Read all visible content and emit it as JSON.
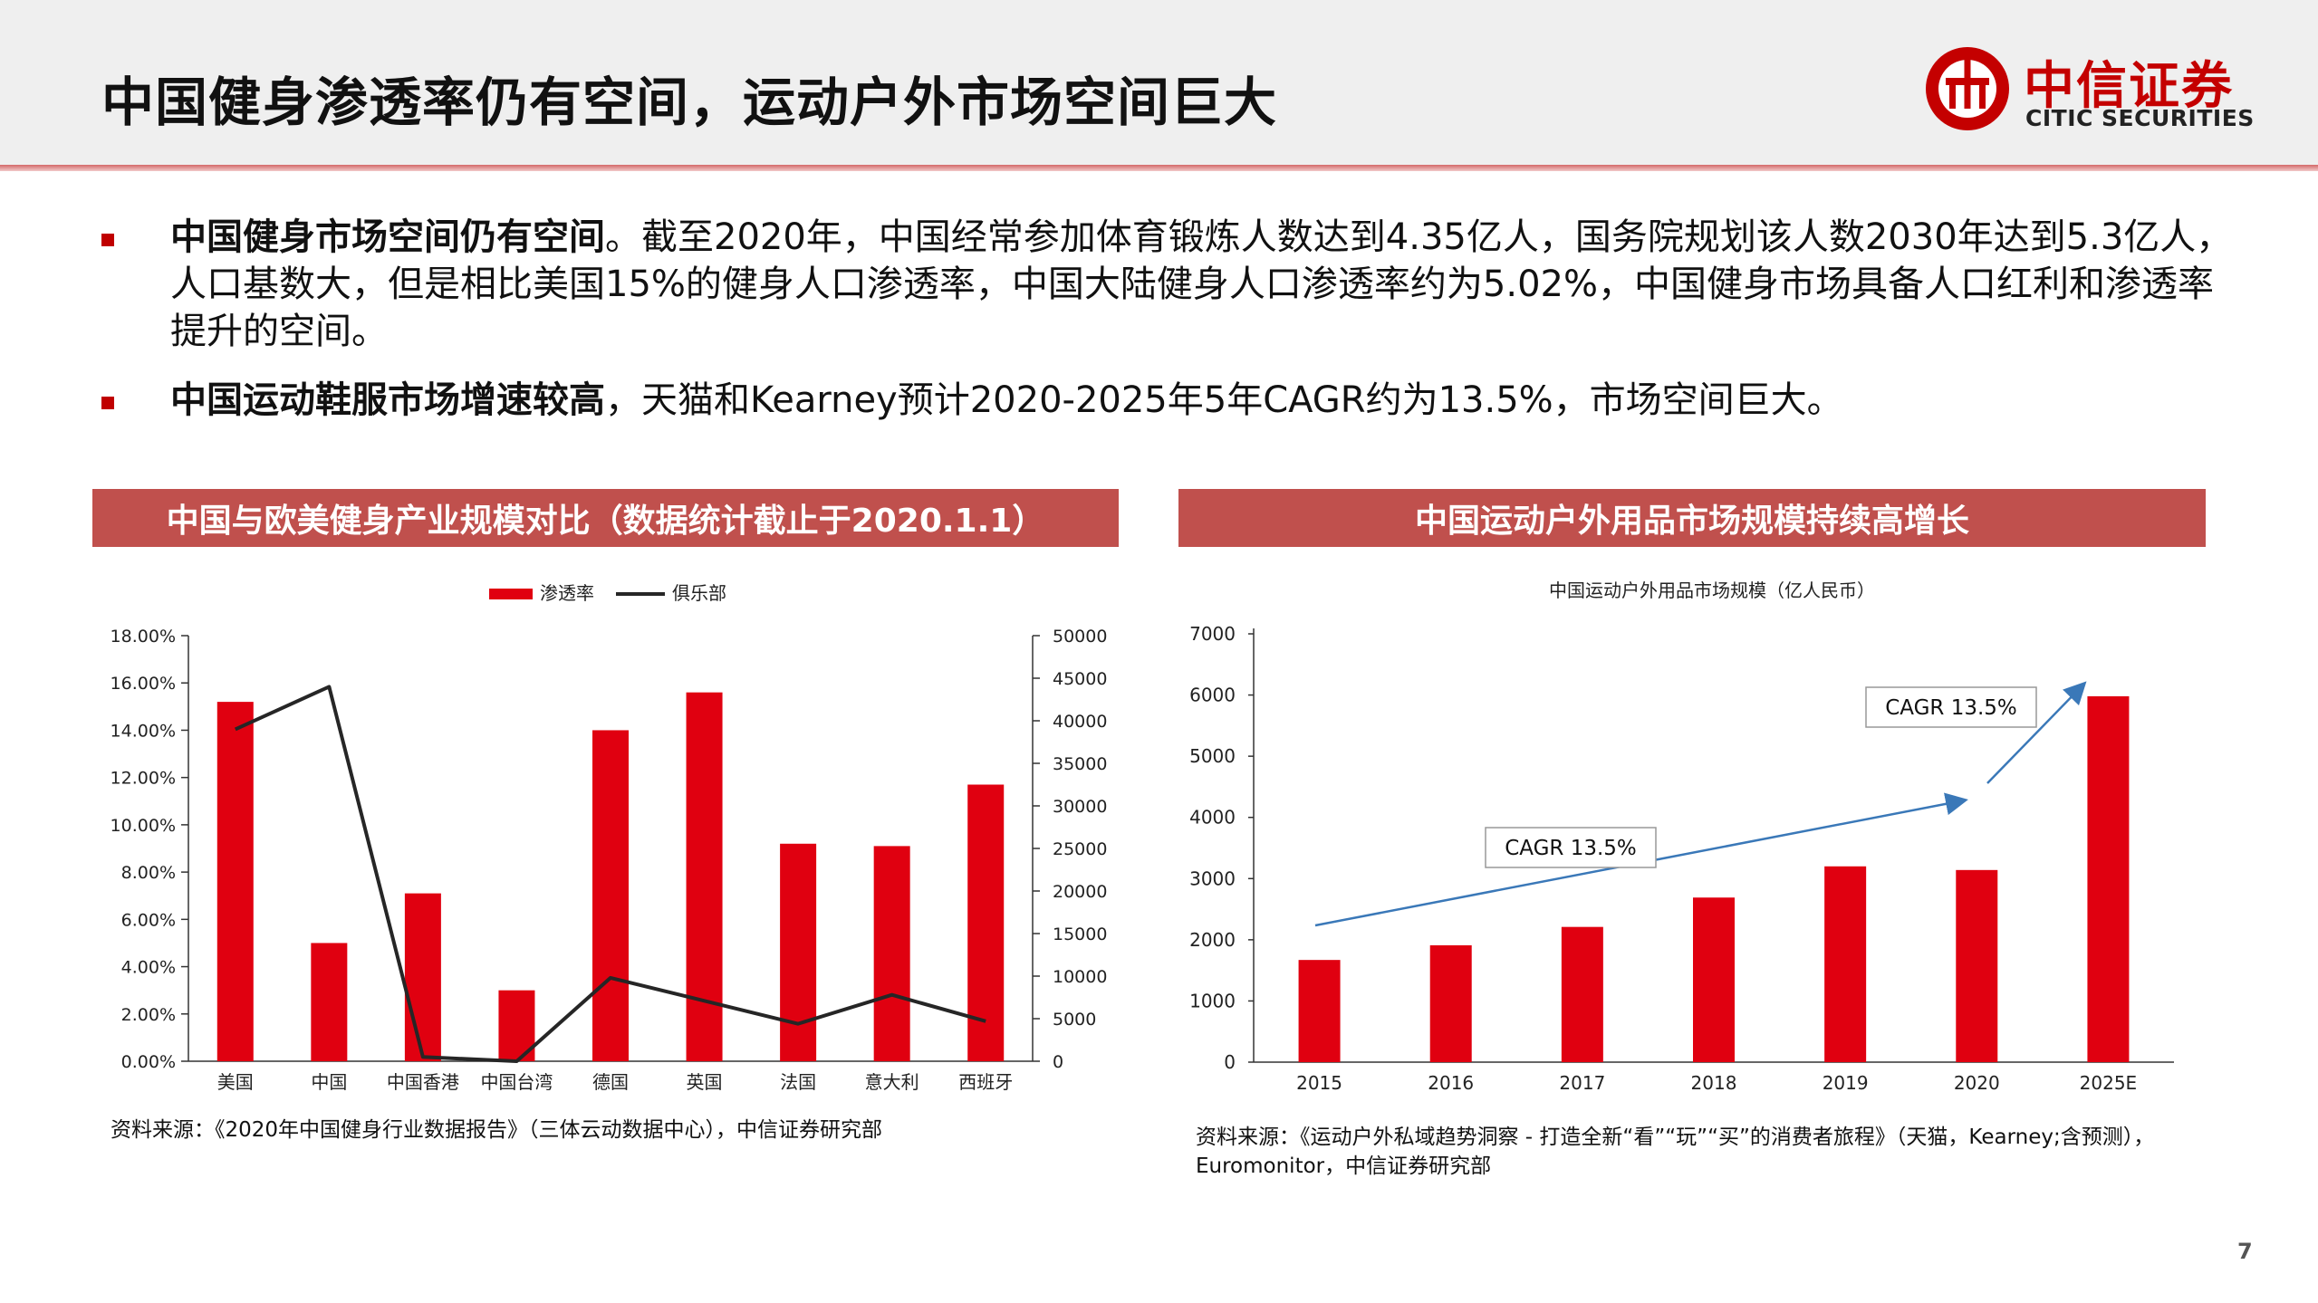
{
  "header": {
    "title": "中国健身渗透率仍有空间，运动户外市场空间巨大",
    "logo_cn": "中信证券",
    "logo_en": "CITIC SECURITIES"
  },
  "bullets": [
    {
      "bold": "中国健身市场空间仍有空间",
      "text": "。截至2020年，中国经常参加体育锻炼人数达到4.35亿人，国务院规划该人数2030年达到5.3亿人，人口基数大，但是相比美国15%的健身人口渗透率，中国大陆健身人口渗透率约为5.02%，中国健身市场具备人口红利和渗透率提升的空间。"
    },
    {
      "bold": "中国运动鞋服市场增速较高",
      "text": "，天猫和Kearney预计2020-2025年5年CAGR约为13.5%，市场空间巨大。"
    }
  ],
  "left_panel": {
    "title": "中国与欧美健身产业规模对比（数据统计截止于2020.1.1）",
    "source": "资料来源：《2020年中国健身行业数据报告》（三体云动数据中心），中信证券研究部"
  },
  "right_panel": {
    "title": "中国运动户外用品市场规模持续高增长",
    "source_line1": "资料来源：《运动户外私域趋势洞察 - 打造全新“看”“玩”“买”的消费者旅程》（天猫，Kearney;含预测），",
    "source_line2": "Euromonitor，中信证券研究部"
  },
  "page_number": "7",
  "colors": {
    "accent": "#c0504d",
    "bar": "#e00010",
    "line": "#262626",
    "arrow": "#3a78b8"
  },
  "chart_data": [
    {
      "type": "bar",
      "title": "",
      "categories": [
        "美国",
        "中国",
        "中国香港",
        "中国台湾",
        "德国",
        "英国",
        "法国",
        "意大利",
        "西班牙"
      ],
      "series": [
        {
          "name": "渗透率",
          "type": "bar",
          "axis": "left",
          "values": [
            15.2,
            5.0,
            7.1,
            3.0,
            14.0,
            15.6,
            9.2,
            9.1,
            11.7
          ]
        },
        {
          "name": "俱乐部",
          "type": "line",
          "axis": "right",
          "values": [
            39000,
            44000,
            500,
            0,
            9800,
            7100,
            4400,
            7800,
            4700
          ]
        }
      ],
      "ylim_left": [
        0,
        18
      ],
      "yticks_left": [
        "0.00%",
        "2.00%",
        "4.00%",
        "6.00%",
        "8.00%",
        "10.00%",
        "12.00%",
        "14.00%",
        "16.00%",
        "18.00%"
      ],
      "ylim_right": [
        0,
        50000
      ],
      "yticks_right": [
        "0",
        "5000",
        "10000",
        "15000",
        "20000",
        "25000",
        "30000",
        "35000",
        "40000",
        "45000",
        "50000"
      ],
      "legend": "top-center",
      "grid": false
    },
    {
      "type": "bar",
      "title": "中国运动户外用品市场规模（亿人民币）",
      "categories": [
        "2015",
        "2016",
        "2017",
        "2018",
        "2019",
        "2020",
        "2025E"
      ],
      "values": [
        1670,
        1910,
        2210,
        2690,
        3200,
        3140,
        5980
      ],
      "ylim": [
        0,
        7000
      ],
      "yticks": [
        "0",
        "1000",
        "2000",
        "3000",
        "4000",
        "5000",
        "6000",
        "7000"
      ],
      "annotations": [
        "CAGR 13.5%",
        "CAGR 13.5%"
      ],
      "grid": false
    }
  ]
}
